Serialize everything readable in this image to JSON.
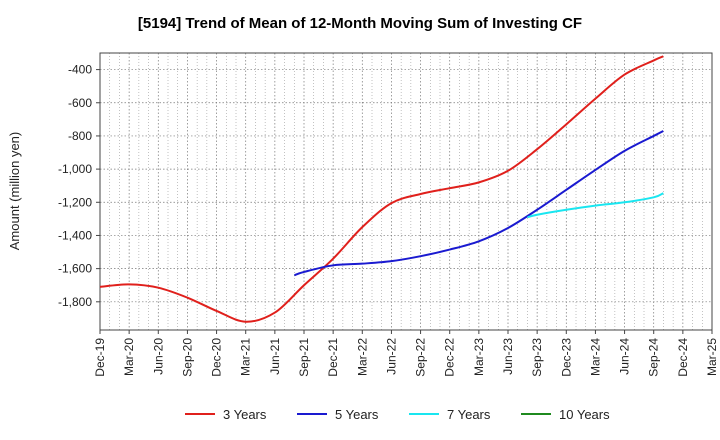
{
  "chart_data": {
    "type": "line",
    "title": "[5194]  Trend of Mean of 12-Month Moving Sum of Investing CF",
    "xlabel": "",
    "ylabel": "Amount (million yen)",
    "ylim": [
      -1970,
      -300
    ],
    "yticks": [
      -400,
      -600,
      -800,
      -1000,
      -1200,
      -1400,
      -1600,
      -1800
    ],
    "ytick_labels": [
      "-400",
      "-600",
      "-800",
      "-1,000",
      "-1,200",
      "-1,400",
      "-1,600",
      "-1,800"
    ],
    "xtick_labels": [
      "Dec-19",
      "Mar-20",
      "Jun-20",
      "Sep-20",
      "Dec-20",
      "Mar-21",
      "Jun-21",
      "Sep-21",
      "Dec-21",
      "Mar-22",
      "Jun-22",
      "Sep-22",
      "Dec-22",
      "Mar-23",
      "Jun-23",
      "Sep-23",
      "Dec-23",
      "Mar-24",
      "Jun-24",
      "Sep-24",
      "Dec-24",
      "Mar-25"
    ],
    "grid": true,
    "legend_position": "bottom",
    "series": [
      {
        "name": "3 Years",
        "color": "#e0201c",
        "points": [
          [
            0,
            -1710
          ],
          [
            1,
            -1695
          ],
          [
            2,
            -1715
          ],
          [
            3,
            -1775
          ],
          [
            4,
            -1855
          ],
          [
            5,
            -1920
          ],
          [
            6,
            -1865
          ],
          [
            7,
            -1700
          ],
          [
            8,
            -1540
          ],
          [
            9,
            -1350
          ],
          [
            10,
            -1205
          ],
          [
            11,
            -1150
          ],
          [
            12,
            -1115
          ],
          [
            13,
            -1080
          ],
          [
            14,
            -1010
          ],
          [
            15,
            -880
          ],
          [
            16,
            -730
          ],
          [
            17,
            -575
          ],
          [
            18,
            -430
          ],
          [
            19,
            -345
          ],
          [
            19.33,
            -320
          ]
        ]
      },
      {
        "name": "5 Years",
        "color": "#1a1ad0",
        "points": [
          [
            6.67,
            -1640
          ],
          [
            7,
            -1620
          ],
          [
            8,
            -1580
          ],
          [
            9,
            -1570
          ],
          [
            10,
            -1555
          ],
          [
            11,
            -1525
          ],
          [
            12,
            -1485
          ],
          [
            13,
            -1435
          ],
          [
            14,
            -1355
          ],
          [
            15,
            -1245
          ],
          [
            16,
            -1125
          ],
          [
            17,
            -1005
          ],
          [
            18,
            -890
          ],
          [
            19,
            -800
          ],
          [
            19.33,
            -770
          ]
        ]
      },
      {
        "name": "7 Years",
        "color": "#19e6f0",
        "points": [
          [
            14.67,
            -1290
          ],
          [
            15,
            -1275
          ],
          [
            16,
            -1245
          ],
          [
            17,
            -1220
          ],
          [
            18,
            -1200
          ],
          [
            19,
            -1170
          ],
          [
            19.33,
            -1145
          ]
        ]
      },
      {
        "name": "10 Years",
        "color": "#1f8a1f",
        "points": []
      }
    ]
  }
}
